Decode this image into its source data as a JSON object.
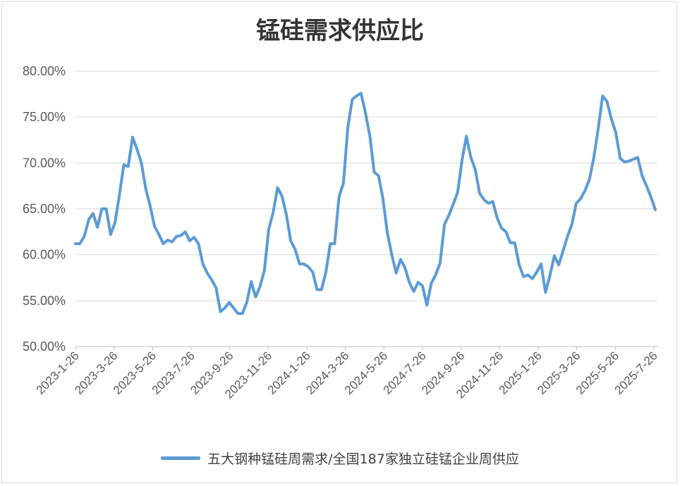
{
  "chart_data": {
    "type": "line",
    "title": "锰硅需求供应比",
    "xlabel": "",
    "ylabel": "",
    "ylim": [
      0.5,
      0.8
    ],
    "y_ticks": [
      "80.00%",
      "75.00%",
      "70.00%",
      "65.00%",
      "60.00%",
      "55.00%",
      "50.00%"
    ],
    "x_start": "2023-1-26",
    "x_end": "2025-7-26",
    "x_tick_labels": [
      "2023-1-26",
      "2023-3-26",
      "2023-5-26",
      "2023-7-26",
      "2023-9-26",
      "2023-11-26",
      "2024-1-26",
      "2024-3-26",
      "2024-5-26",
      "2024-7-26",
      "2024-9-26",
      "2024-11-26",
      "2025-1-26",
      "2025-3-26",
      "2025-5-26",
      "2025-7-26"
    ],
    "grid": true,
    "legend_position": "bottom",
    "color": "#5b9bd5",
    "series": [
      {
        "name": "五大钢种锰硅周需求/全国187家独立硅锰企业周供应",
        "values": [
          61.2,
          61.2,
          62.0,
          63.8,
          64.5,
          63.0,
          65.0,
          65.0,
          62.2,
          63.5,
          66.5,
          69.8,
          69.6,
          72.8,
          71.5,
          70.0,
          67.2,
          65.3,
          63.1,
          62.2,
          61.2,
          61.6,
          61.4,
          62.0,
          62.1,
          62.5,
          61.5,
          61.9,
          61.2,
          59.0,
          58.0,
          57.3,
          56.4,
          53.8,
          54.2,
          54.8,
          54.2,
          53.6,
          53.6,
          54.8,
          57.1,
          55.4,
          56.5,
          58.3,
          62.8,
          64.6,
          67.3,
          66.4,
          64.4,
          61.5,
          60.6,
          59.0,
          59.0,
          58.7,
          58.1,
          56.2,
          56.2,
          58.1,
          61.2,
          61.2,
          66.3,
          67.8,
          73.9,
          76.9,
          77.3,
          77.6,
          75.5,
          73.0,
          69.0,
          68.6,
          66.1,
          62.4,
          60.0,
          58.0,
          59.5,
          58.6,
          57.0,
          56.0,
          57.0,
          56.6,
          54.5,
          56.9,
          57.8,
          59.1,
          63.3,
          64.3,
          65.5,
          66.8,
          70.3,
          72.9,
          70.6,
          69.3,
          66.7,
          66.0,
          65.6,
          65.8,
          64.0,
          62.9,
          62.5,
          61.3,
          61.3,
          58.9,
          57.6,
          57.8,
          57.4,
          58.1,
          59.0,
          55.9,
          57.7,
          59.9,
          58.9,
          60.4,
          62.0,
          63.3,
          65.6,
          66.1,
          67.0,
          68.2,
          70.6,
          73.7,
          77.3,
          76.7,
          74.8,
          73.3,
          70.5,
          70.1,
          70.2,
          70.4,
          70.6,
          68.6,
          67.5,
          66.3,
          64.9
        ]
      }
    ]
  }
}
